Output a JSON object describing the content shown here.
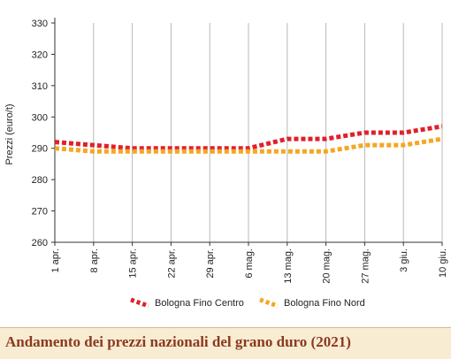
{
  "footer": {
    "title": "Andamento dei prezzi nazionali del grano duro (2021)"
  },
  "chart_data": {
    "type": "line",
    "title": "",
    "ylabel": "Prezzi (euro/t)",
    "xlabel": "",
    "ylim": [
      260,
      330
    ],
    "yticks": [
      260,
      270,
      280,
      290,
      300,
      310,
      320,
      330
    ],
    "categories": [
      "1 apr.",
      "8 apr.",
      "15 apr.",
      "22 apr.",
      "29 apr.",
      "6 mag.",
      "13 mag.",
      "20 mag.",
      "27 mag.",
      "3 giu.",
      "10 giu."
    ],
    "grid": "vertical",
    "legend_position": "bottom",
    "series": [
      {
        "name": "Bologna Fino Centro",
        "color": "#e0202a",
        "values": [
          292,
          291,
          290,
          290,
          290,
          290,
          293,
          293,
          295,
          295,
          297
        ]
      },
      {
        "name": "Bologna Fino Nord",
        "color": "#f5a623",
        "values": [
          290,
          289,
          289,
          289,
          289,
          289,
          289,
          289,
          291,
          291,
          293
        ]
      }
    ]
  }
}
